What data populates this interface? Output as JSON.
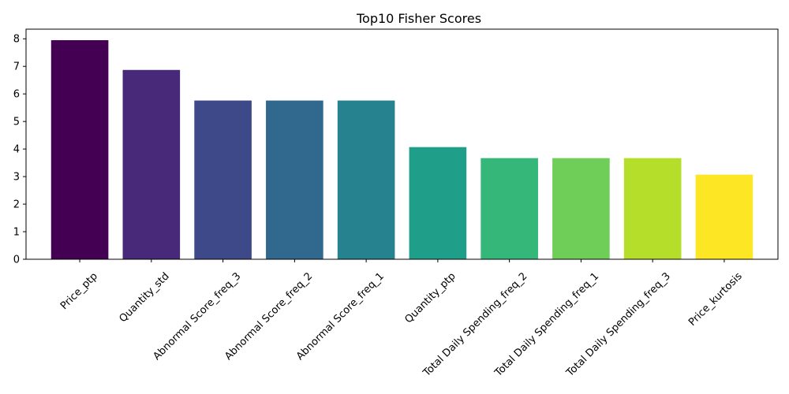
{
  "chart_data": {
    "type": "bar",
    "title": "Top10 Fisher Scores",
    "xlabel": "",
    "ylabel": "",
    "categories": [
      "Price_ptp",
      "Quantity_std",
      "Abnormal Score_freq_3",
      "Abnormal Score_freq_2",
      "Abnormal Score_freq_1",
      "Quantity_ptp",
      "Total Daily Spending_freq_2",
      "Total Daily Spending_freq_1",
      "Total Daily Spending_freq_3",
      "Price_kurtosis"
    ],
    "values": [
      7.95,
      6.87,
      5.76,
      5.76,
      5.76,
      4.07,
      3.67,
      3.67,
      3.67,
      3.07
    ],
    "colors": [
      "#440154",
      "#482878",
      "#3e4989",
      "#31688e",
      "#26828e",
      "#1f9e89",
      "#35b779",
      "#6ece58",
      "#b5de2b",
      "#fde725"
    ],
    "ylim": [
      0,
      8.35
    ],
    "yticks": [
      0,
      1,
      2,
      3,
      4,
      5,
      6,
      7,
      8
    ],
    "xtick_rotation": 45,
    "grid": false,
    "legend": "none"
  }
}
